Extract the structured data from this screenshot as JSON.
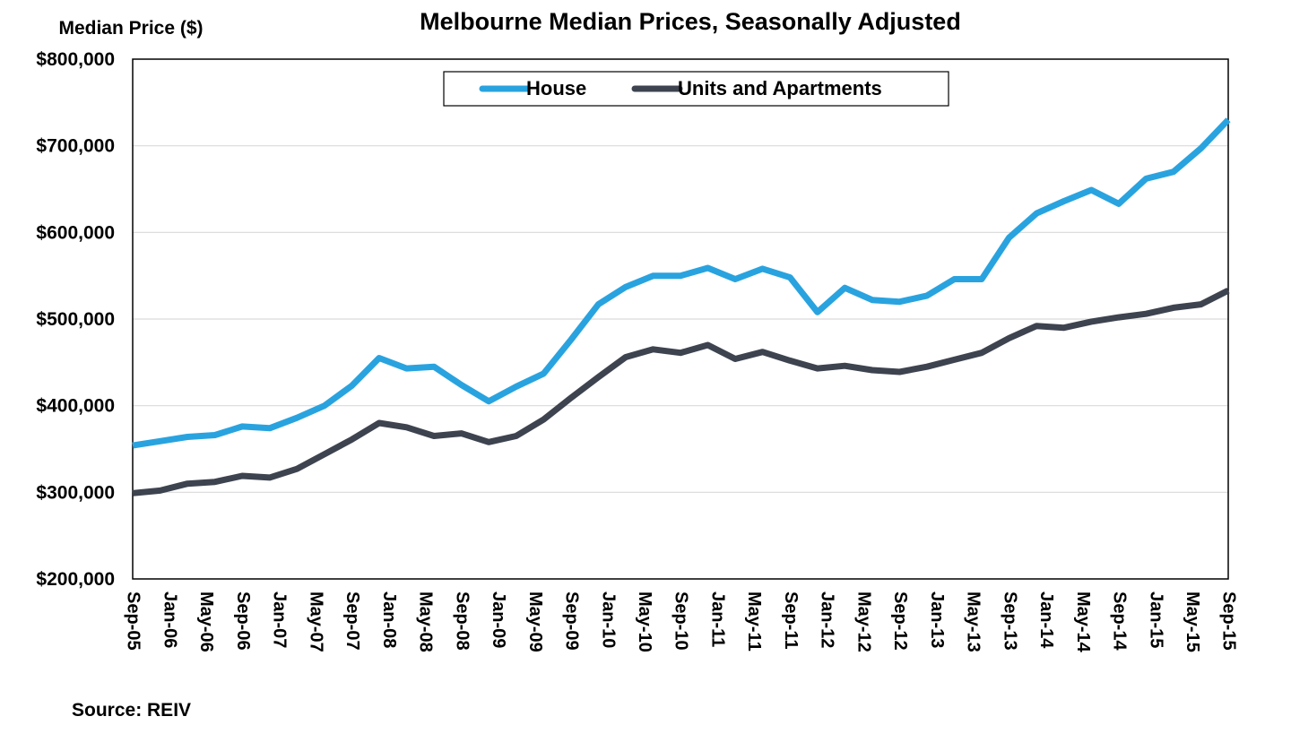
{
  "chart_data": {
    "type": "line",
    "title": "Melbourne Median Prices, Seasonally Adjusted",
    "ylabel": "Median Price ($)",
    "xlabel": "",
    "source": "Source:  REIV",
    "ylim": [
      200000,
      800000
    ],
    "y_ticks": [
      200000,
      300000,
      400000,
      500000,
      600000,
      700000,
      800000
    ],
    "y_tick_labels": [
      "$200,000",
      "$300,000",
      "$400,000",
      "$500,000",
      "$600,000",
      "$700,000",
      "$800,000"
    ],
    "grid": true,
    "legend_position": "top-center",
    "x": [
      "Sep-05",
      "Dec-05",
      "Mar-06",
      "Jun-06",
      "Sep-06",
      "Dec-06",
      "Mar-07",
      "Jun-07",
      "Sep-07",
      "Dec-07",
      "Mar-08",
      "Jun-08",
      "Sep-08",
      "Dec-08",
      "Mar-09",
      "Jun-09",
      "Sep-09",
      "Dec-09",
      "Mar-10",
      "Jun-10",
      "Sep-10",
      "Dec-10",
      "Mar-11",
      "Jun-11",
      "Sep-11",
      "Dec-11",
      "Mar-12",
      "Jun-12",
      "Sep-12",
      "Dec-12",
      "Mar-13",
      "Jun-13",
      "Sep-13",
      "Dec-13",
      "Mar-14",
      "Jun-14",
      "Sep-14",
      "Dec-14",
      "Mar-15",
      "Jun-15",
      "Sep-15"
    ],
    "x_tick_labels": [
      "Sep-05",
      "Jan-06",
      "May-06",
      "Sep-06",
      "Jan-07",
      "May-07",
      "Sep-07",
      "Jan-08",
      "May-08",
      "Sep-08",
      "Jan-09",
      "May-09",
      "Sep-09",
      "Jan-10",
      "May-10",
      "Sep-10",
      "Jan-11",
      "May-11",
      "Sep-11",
      "Jan-12",
      "May-12",
      "Sep-12",
      "Jan-13",
      "May-13",
      "Sep-13",
      "Jan-14",
      "May-14",
      "Sep-14",
      "Jan-15",
      "May-15",
      "Sep-15"
    ],
    "series": [
      {
        "name": "House",
        "color": "#29a3df",
        "values": [
          354000,
          359000,
          364000,
          366000,
          376000,
          374000,
          386000,
          400000,
          423000,
          455000,
          443000,
          445000,
          424000,
          405000,
          422000,
          437000,
          476000,
          517000,
          537000,
          550000,
          550000,
          559000,
          546000,
          558000,
          548000,
          508000,
          536000,
          522000,
          520000,
          527000,
          546000,
          546000,
          594000,
          622000,
          636000,
          649000,
          633000,
          662000,
          670000,
          697000,
          730000
        ]
      },
      {
        "name": "Units and Apartments",
        "color": "#3d434f",
        "values": [
          299000,
          302000,
          310000,
          312000,
          319000,
          317000,
          327000,
          344000,
          361000,
          380000,
          375000,
          365000,
          368000,
          358000,
          365000,
          384000,
          409000,
          433000,
          456000,
          465000,
          461000,
          470000,
          454000,
          462000,
          452000,
          443000,
          446000,
          441000,
          439000,
          445000,
          453000,
          461000,
          478000,
          492000,
          490000,
          497000,
          502000,
          506000,
          513000,
          517000,
          533000
        ]
      }
    ]
  }
}
